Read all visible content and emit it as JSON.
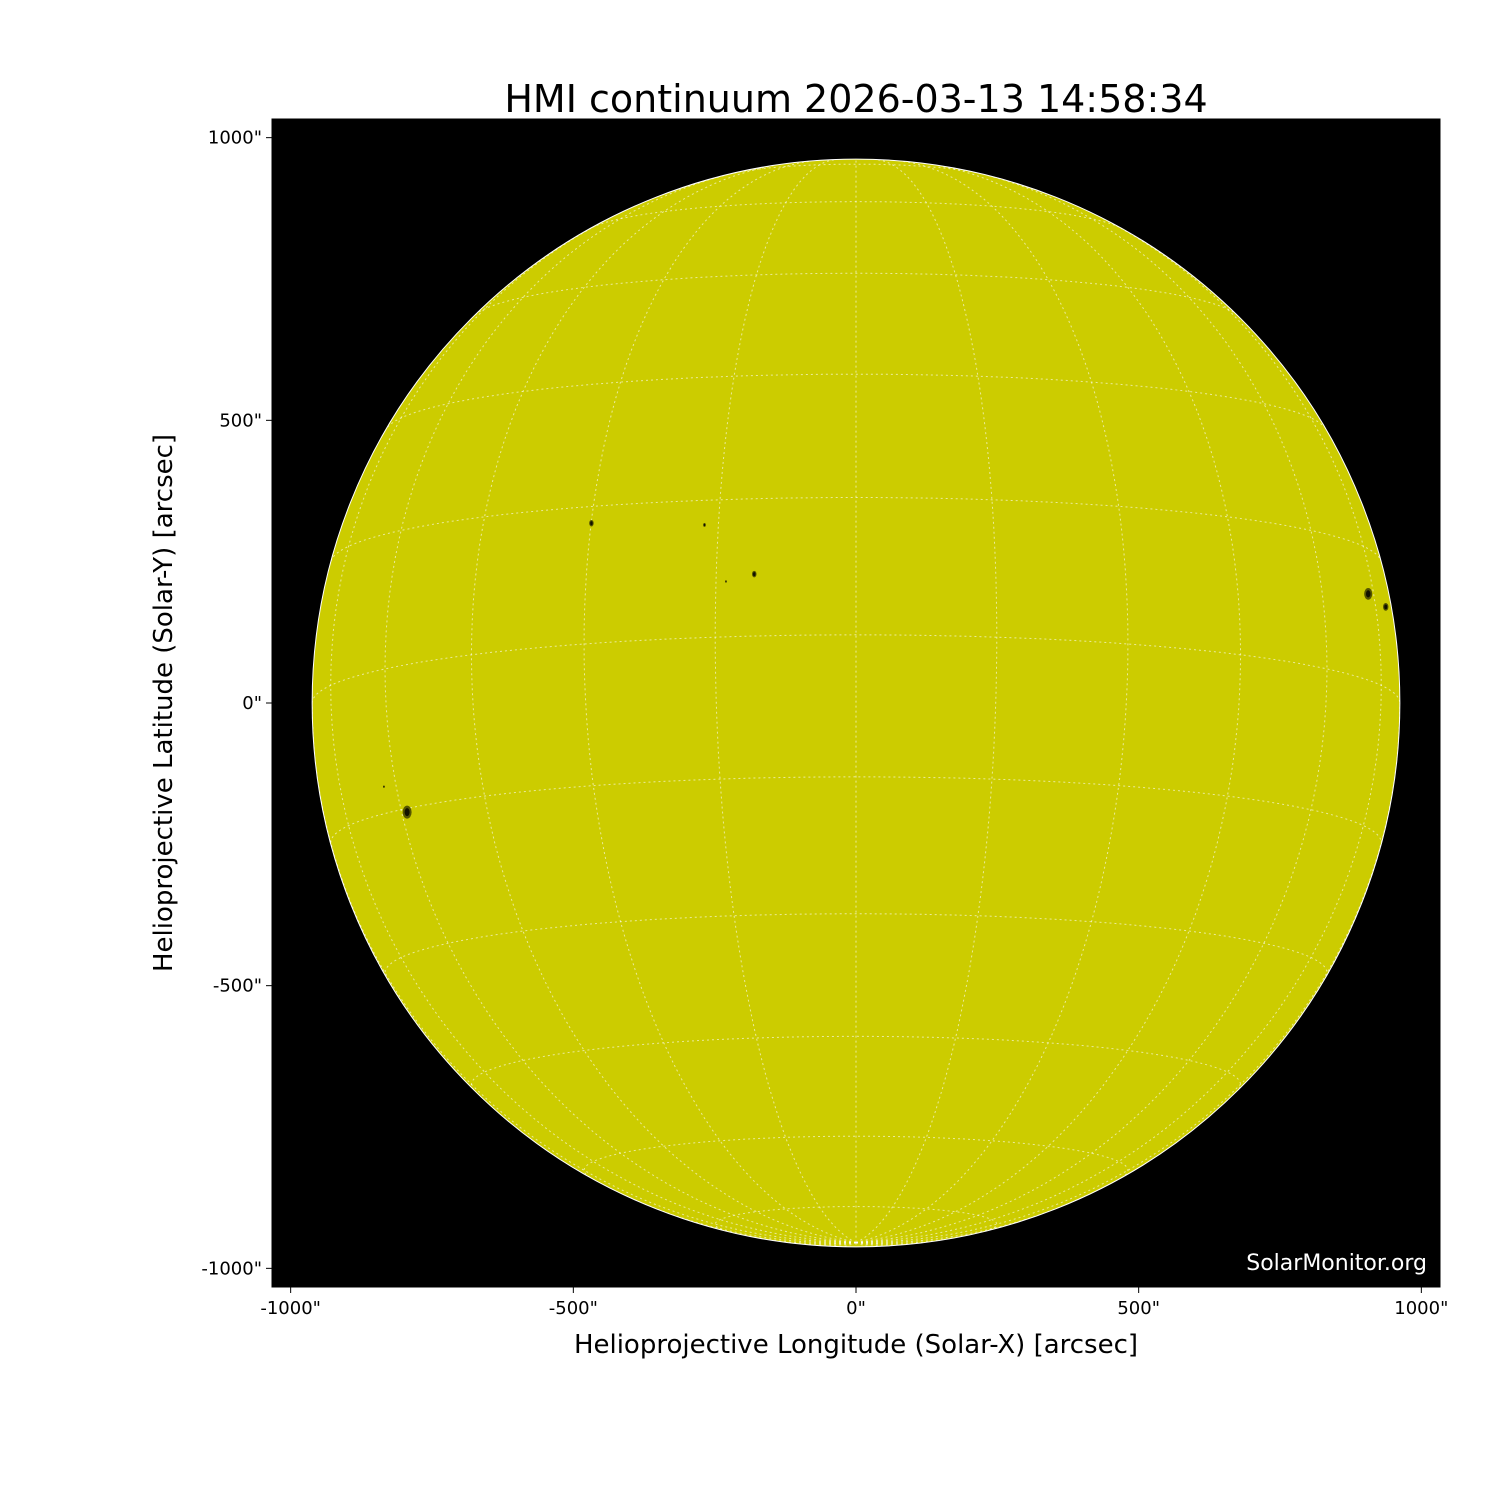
{
  "chart_data": {
    "type": "image",
    "title": "HMI continuum 2026-03-13 14:58:34",
    "xlabel": "Helioprojective Longitude (Solar-X) [arcsec]",
    "ylabel": "Helioprojective Latitude (Solar-Y) [arcsec]",
    "xlim": [
      -1033,
      1033
    ],
    "ylim": [
      -1033,
      1033
    ],
    "xticks": [
      {
        "value": -1000,
        "label": "-1000\""
      },
      {
        "value": -500,
        "label": "-500\""
      },
      {
        "value": 0,
        "label": "0\""
      },
      {
        "value": 500,
        "label": "500\""
      },
      {
        "value": 1000,
        "label": "1000\""
      }
    ],
    "yticks": [
      {
        "value": 1000,
        "label": "1000\""
      },
      {
        "value": 500,
        "label": "500\""
      },
      {
        "value": 0,
        "label": "0\""
      },
      {
        "value": -500,
        "label": "-500\""
      },
      {
        "value": -1000,
        "label": "-1000\""
      }
    ],
    "solar_radius_arcsec": 962,
    "b0_deg": -7.2,
    "grid_spacing_deg": 15,
    "grid": true,
    "colors": {
      "disk": "#cccc00",
      "background": "#000000",
      "grid": "#ffffff"
    },
    "sunspots": [
      {
        "x": -794,
        "y": -193,
        "size": 10
      },
      {
        "x": 906,
        "y": 193,
        "size": 9
      },
      {
        "x": 937,
        "y": 170,
        "size": 6
      },
      {
        "x": -180,
        "y": 228,
        "size": 5
      },
      {
        "x": -468,
        "y": 318,
        "size": 5
      },
      {
        "x": -268,
        "y": 315,
        "size": 3
      },
      {
        "x": -230,
        "y": 215,
        "size": 2
      },
      {
        "x": -835,
        "y": -148,
        "size": 2
      }
    ],
    "watermark": "SolarMonitor.org"
  }
}
